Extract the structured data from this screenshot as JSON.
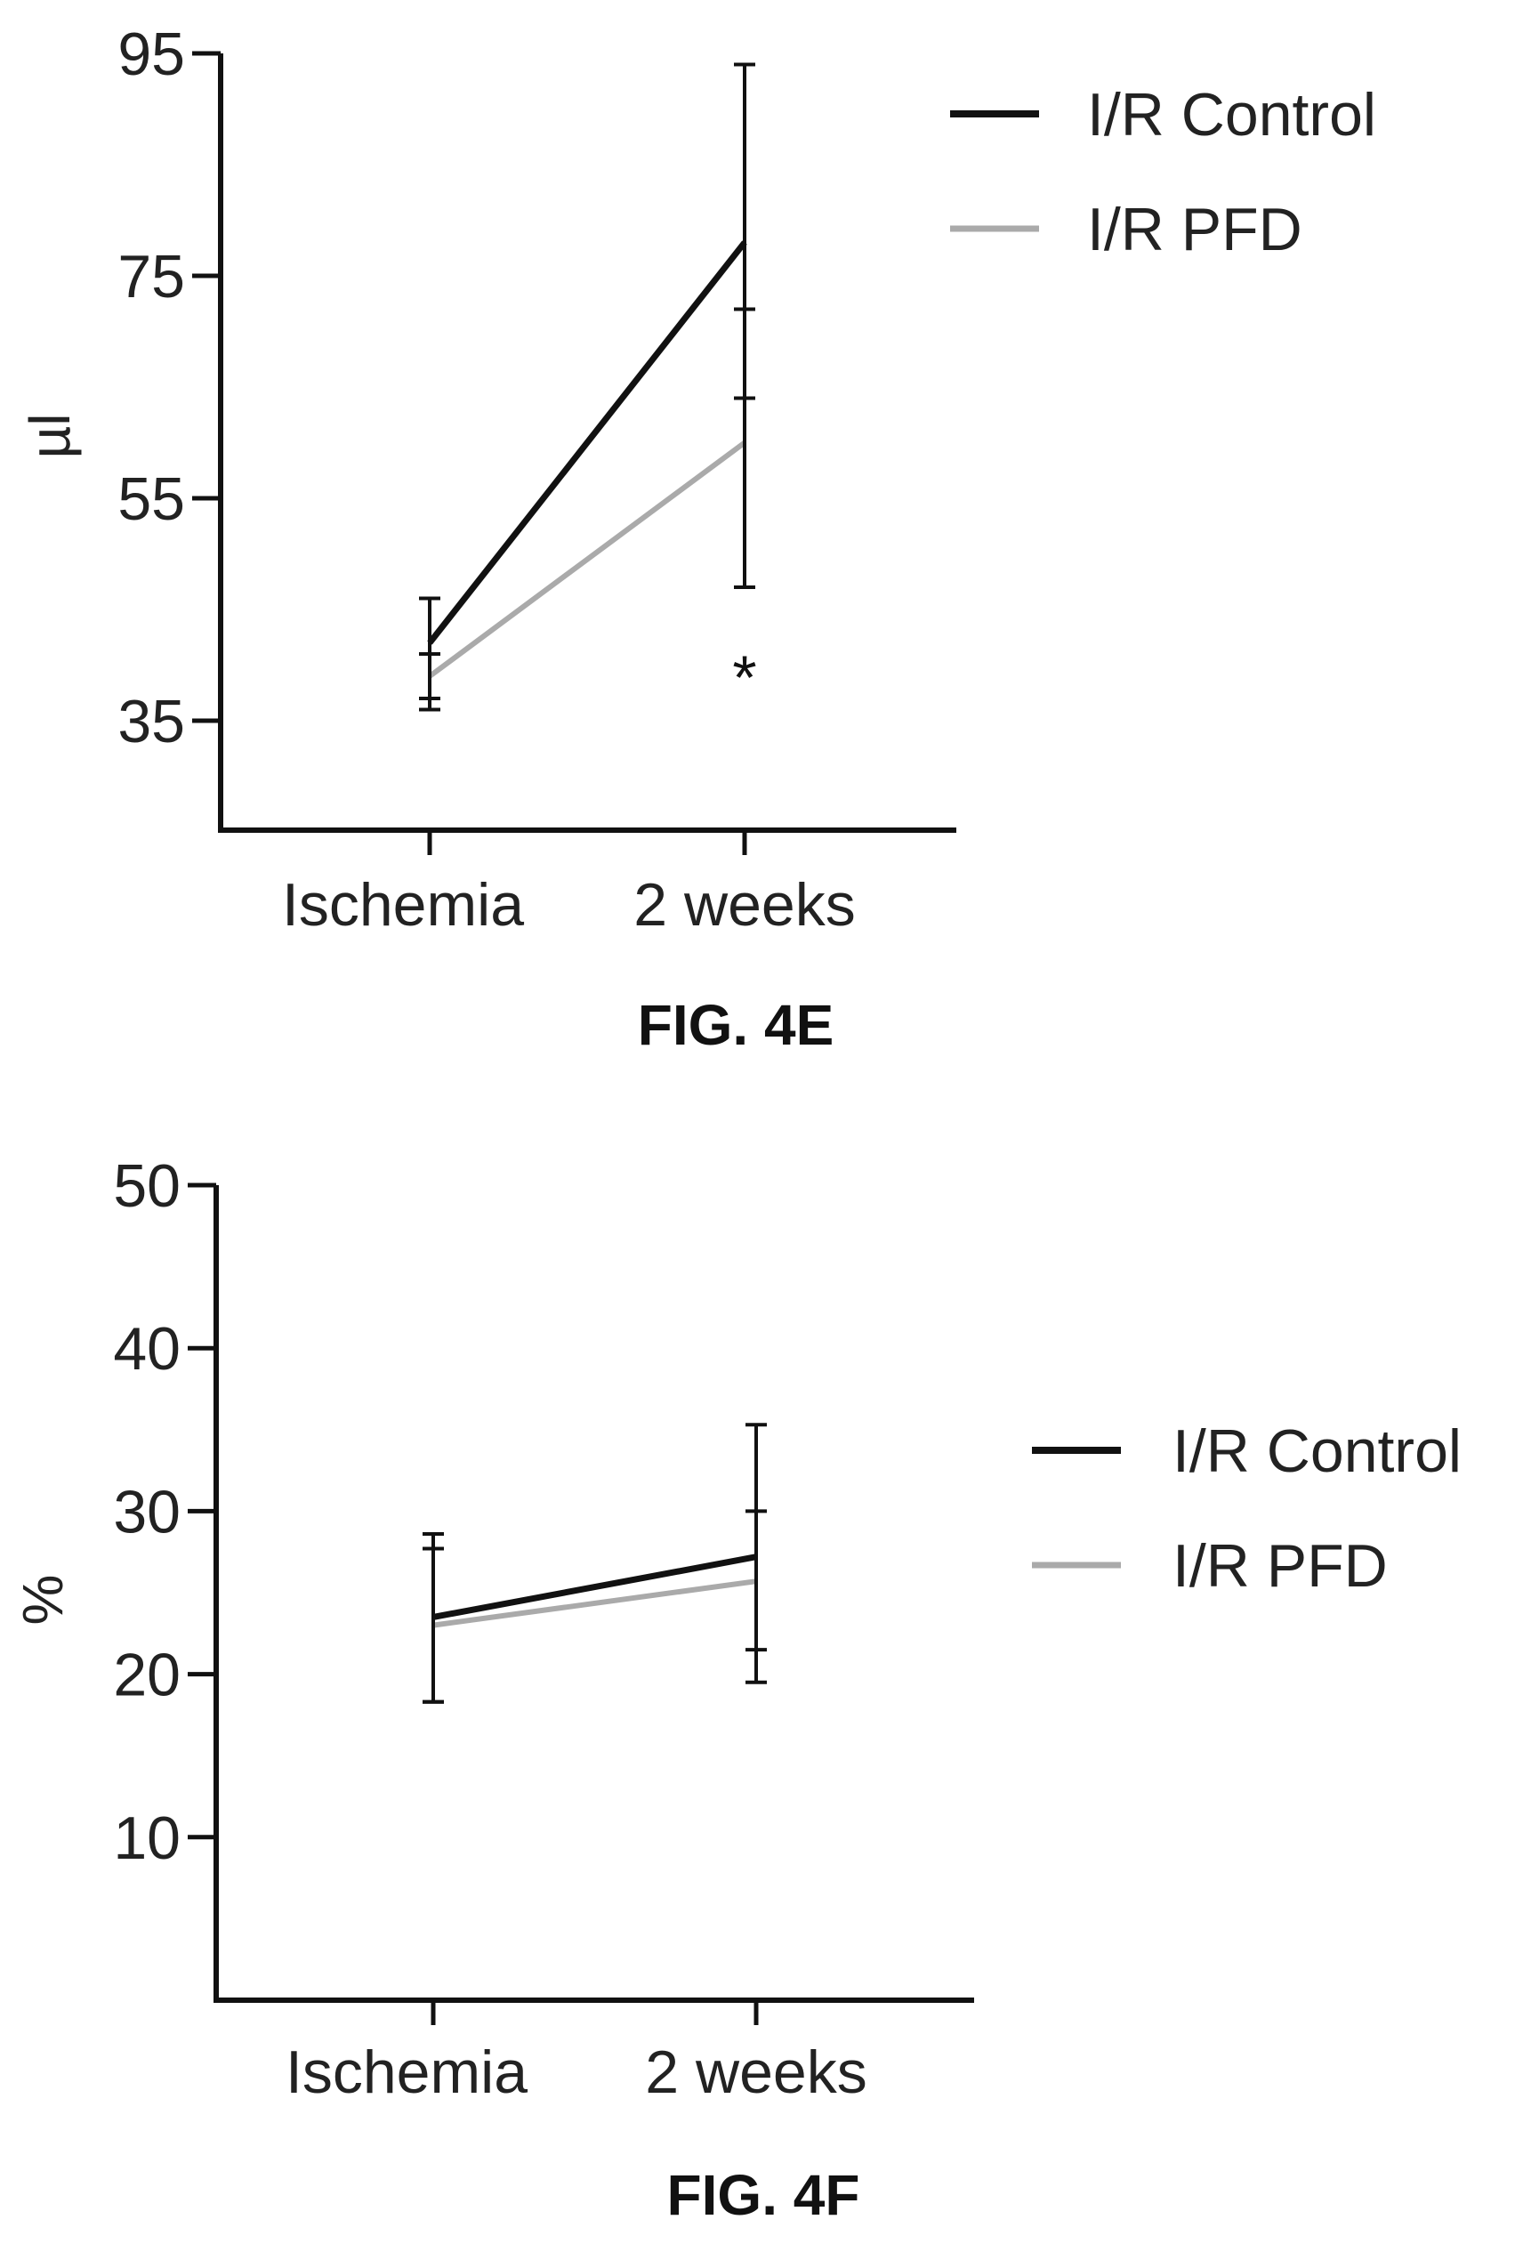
{
  "figures": [
    {
      "caption": "FIG. 4E",
      "chart_data": {
        "type": "line",
        "title": "",
        "xlabel": "",
        "ylabel": "µl",
        "categories": [
          "Ischemia",
          "2 weeks"
        ],
        "ylim": [
          25,
          95
        ],
        "yticks": [
          35,
          55,
          75,
          95
        ],
        "yticklabels": [
          "35",
          "55",
          "75",
          "95"
        ],
        "legend_position": "top-right",
        "grid": false,
        "series": [
          {
            "name": "I/R Control",
            "color": "#111111",
            "values": [
              42,
              78
            ],
            "err_low": [
              37,
              47
            ],
            "err_high": [
              46,
              94
            ]
          },
          {
            "name": "I/R PFD",
            "color": "#aaaaaa",
            "values": [
              39,
              60
            ],
            "err_low": [
              36,
              64
            ],
            "err_high": [
              41,
              72
            ]
          }
        ],
        "annotations": [
          {
            "text": "*",
            "category": "2 weeks",
            "y": 40
          }
        ]
      }
    },
    {
      "caption": "FIG. 4F",
      "chart_data": {
        "type": "line",
        "title": "",
        "xlabel": "",
        "ylabel": "%",
        "categories": [
          "Ischemia",
          "2 weeks"
        ],
        "ylim": [
          0,
          50
        ],
        "yticks": [
          10,
          20,
          30,
          40,
          50
        ],
        "yticklabels": [
          "10",
          "20",
          "30",
          "40",
          "50"
        ],
        "legend_position": "right",
        "grid": false,
        "series": [
          {
            "name": "I/R Control",
            "color": "#111111",
            "values": [
              23.5,
              27.2
            ],
            "err_low": [
              18.3,
              19.5
            ],
            "err_high": [
              28.6,
              35.3
            ]
          },
          {
            "name": "I/R PFD",
            "color": "#aaaaaa",
            "values": [
              23,
              25.7
            ],
            "err_low": [
              18.3,
              21.5
            ],
            "err_high": [
              27.7,
              30
            ]
          }
        ],
        "annotations": []
      }
    }
  ]
}
